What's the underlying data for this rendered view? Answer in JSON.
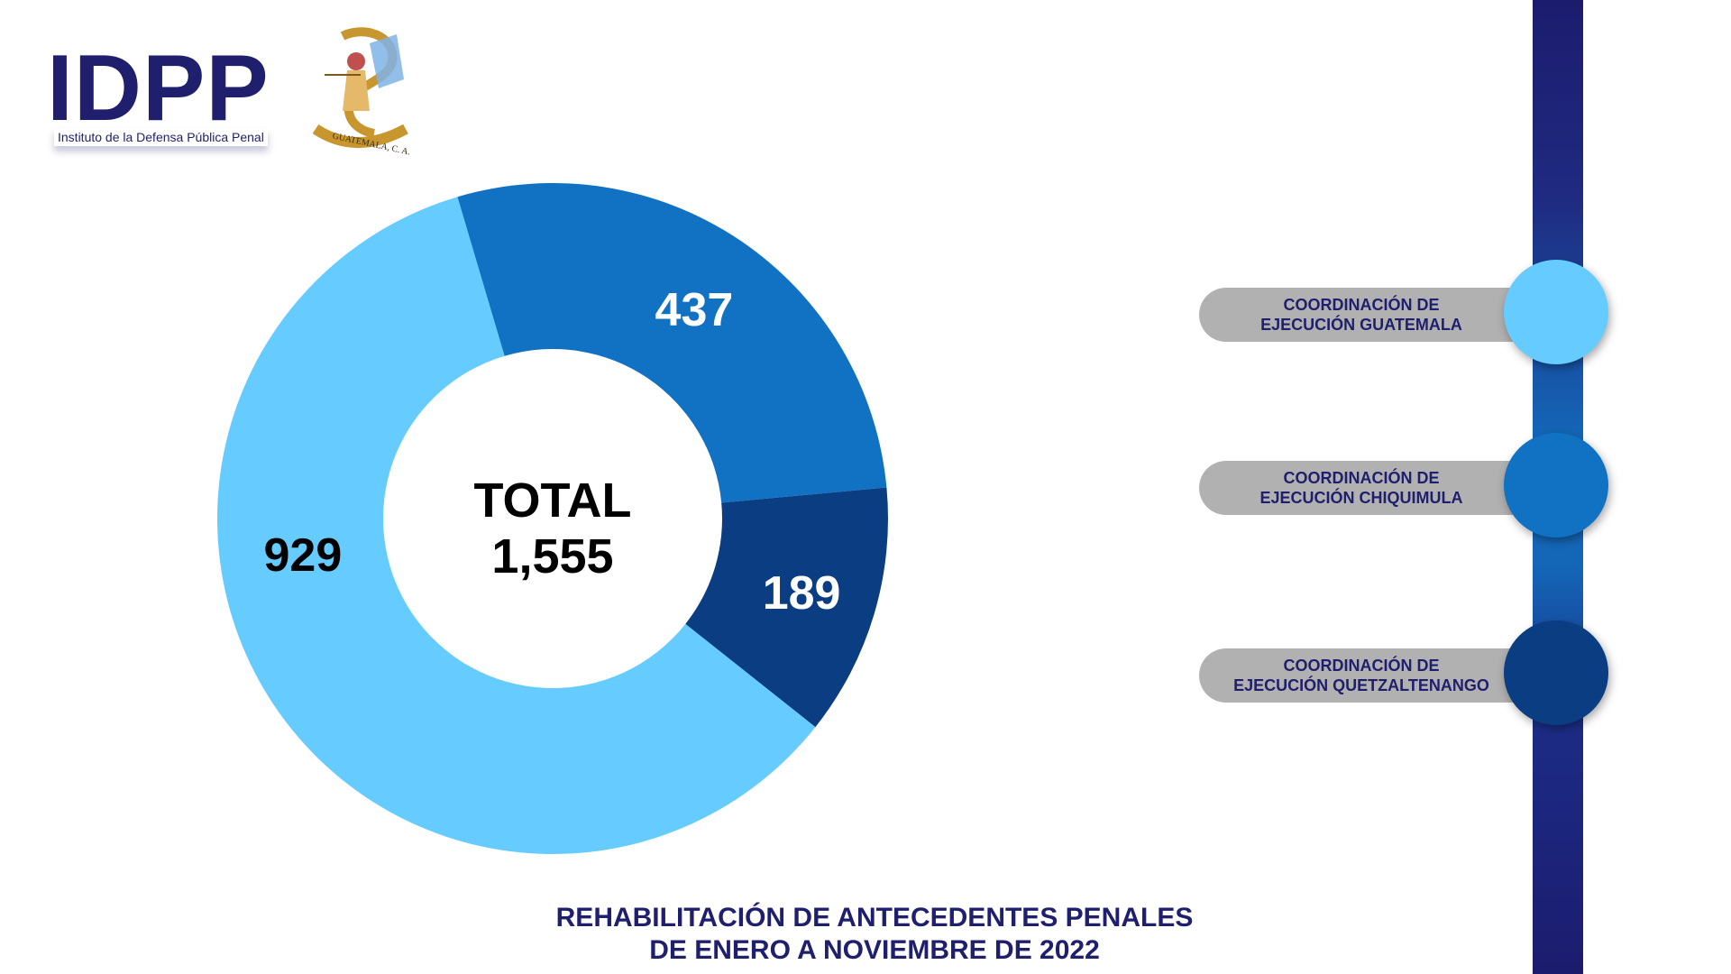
{
  "logo": {
    "wordmark": "IDPP",
    "subtitle": "Instituto de la Defensa Pública Penal",
    "seal_text": "GUATEMALA, C. A."
  },
  "chart_data": {
    "type": "pie",
    "donut": true,
    "categories": [
      "COORDINACIÓN DE EJECUCIÓN GUATEMALA",
      "COORDINACIÓN DE EJECUCIÓN CHIQUIMULA",
      "COORDINACIÓN DE EJECUCIÓN QUETZALTENANGO"
    ],
    "values": [
      929,
      437,
      189
    ],
    "value_labels": [
      "929",
      "437",
      "189"
    ],
    "colors": [
      "#66ccff",
      "#1172c4",
      "#0a3d82"
    ],
    "label_colors": [
      "#000000",
      "#ffffff",
      "#ffffff"
    ],
    "center_label": "TOTAL",
    "center_value": "1,555",
    "title_lines": [
      "REHABILITACIÓN DE ANTECEDENTES PENALES",
      "DE ENERO A NOVIEMBRE DE 2022"
    ],
    "legend_placement": "right"
  },
  "legend": [
    {
      "line1": "COORDINACIÓN DE",
      "line2": "EJECUCIÓN GUATEMALA",
      "color": "#66ccff"
    },
    {
      "line1": "COORDINACIÓN DE",
      "line2": "EJECUCIÓN CHIQUIMULA",
      "color": "#1172c4"
    },
    {
      "line1": "COORDINACIÓN DE",
      "line2": "EJECUCIÓN QUETZALTENANGO",
      "color": "#0a3d82"
    }
  ]
}
